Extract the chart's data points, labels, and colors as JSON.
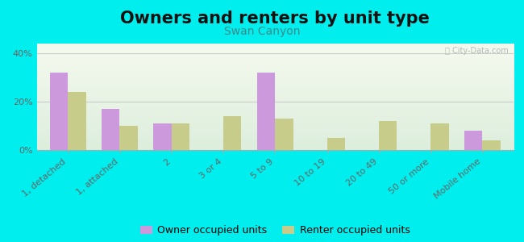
{
  "title": "Owners and renters by unit type",
  "subtitle": "Swan Canyon",
  "categories": [
    "1, detached",
    "1, attached",
    "2",
    "3 or 4",
    "5 to 9",
    "10 to 19",
    "20 to 49",
    "50 or more",
    "Mobile home"
  ],
  "owner_values": [
    32,
    17,
    11,
    0,
    32,
    0,
    0,
    0,
    8
  ],
  "renter_values": [
    24,
    10,
    11,
    14,
    13,
    5,
    12,
    11,
    4
  ],
  "owner_color": "#cc99dd",
  "renter_color": "#c8cc8a",
  "background_color": "#00eeee",
  "ylabel_ticks": [
    "0%",
    "20%",
    "40%"
  ],
  "yticks": [
    0,
    20,
    40
  ],
  "ylim": [
    0,
    44
  ],
  "bar_width": 0.35,
  "legend_owner": "Owner occupied units",
  "legend_renter": "Renter occupied units",
  "title_fontsize": 15,
  "subtitle_fontsize": 10,
  "tick_fontsize": 8,
  "legend_fontsize": 9,
  "subtitle_color": "#448888",
  "title_color": "#111111",
  "watermark_color": "#aaaaaa",
  "grid_color": "#cccccc",
  "tick_color": "#666666"
}
